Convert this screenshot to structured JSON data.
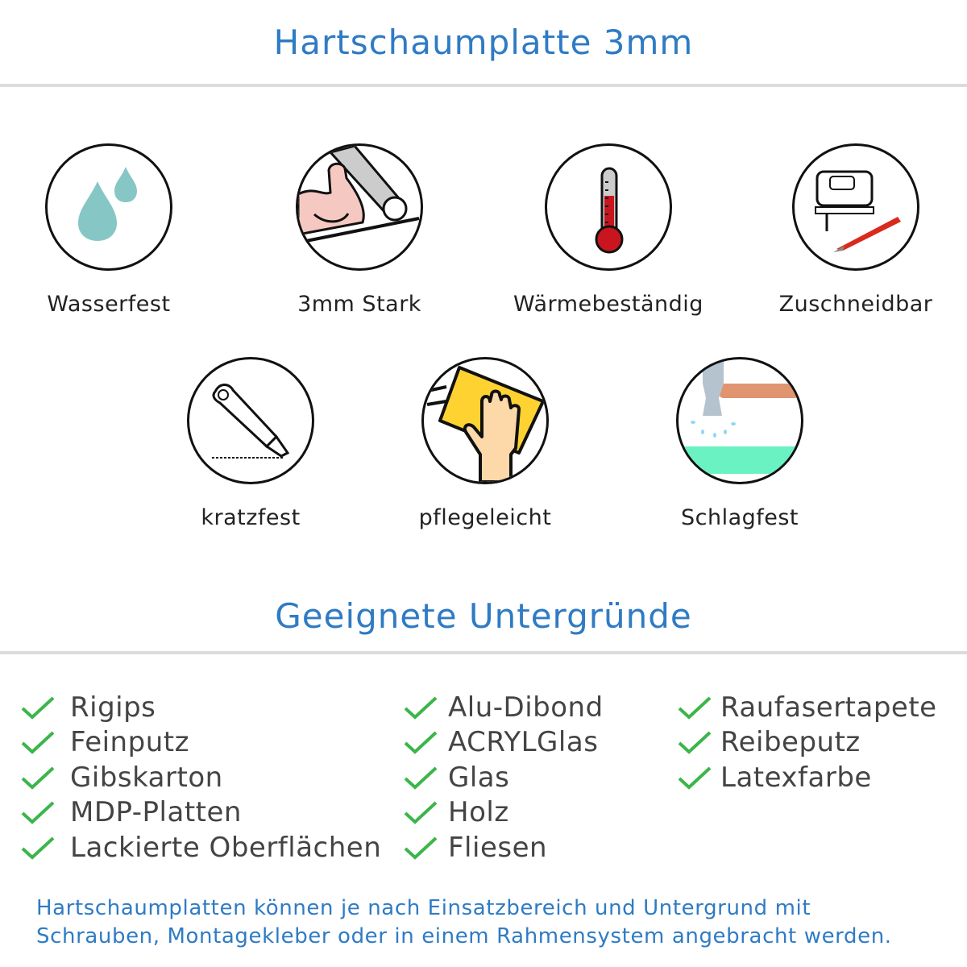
{
  "header": {
    "title": "Hartschaumplatte 3mm"
  },
  "features": [
    {
      "label": "Wasserfest",
      "icon": "water-drops-icon"
    },
    {
      "label": "3mm Stark",
      "icon": "strong-arm-icon"
    },
    {
      "label": "Wärmebeständig",
      "icon": "thermometer-icon"
    },
    {
      "label": "Zuschneidbar",
      "icon": "jigsaw-cutter-icon"
    },
    {
      "label": "kratzfest",
      "icon": "box-cutter-icon"
    },
    {
      "label": "pflegeleicht",
      "icon": "cleaning-hand-icon"
    },
    {
      "label": "Schlagfest",
      "icon": "hammer-icon"
    }
  ],
  "surfaces": {
    "title": "Geeignete Untergründe",
    "columns": [
      [
        "Rigips",
        "Feinputz",
        "Gibskarton",
        "MDP-Platten",
        "Lackierte Oberflächen"
      ],
      [
        "Alu-Dibond",
        "ACRYLGlas",
        "Glas",
        "Holz",
        "Fliesen"
      ],
      [
        "Raufasertapete",
        "Reibeputz",
        "Latexfarbe"
      ]
    ]
  },
  "footer": {
    "line1": "Hartschaumplatten können je nach Einsatzbereich und Untergrund mit",
    "line2": "Schrauben, Montagekleber oder in einem Rahmensystem angebracht werden."
  },
  "colors": {
    "accent": "#2f7bc4",
    "check": "#3cb54a",
    "divider": "#dcdcdc"
  }
}
